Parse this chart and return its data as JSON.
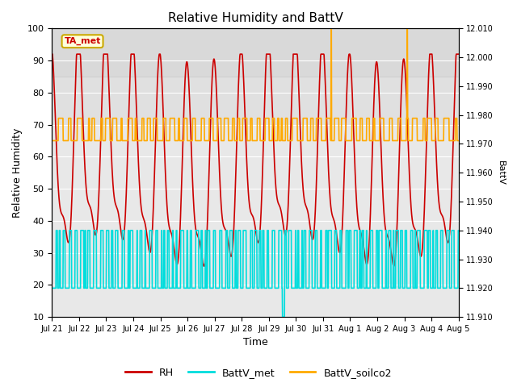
{
  "title": "Relative Humidity and BattV",
  "xlabel": "Time",
  "ylabel_left": "Relative Humidity",
  "ylabel_right": "BattV",
  "annotation_text": "TA_met",
  "annotation_color": "#cc0000",
  "annotation_bg": "#ffffdd",
  "annotation_border": "#ccaa00",
  "plot_bg_color": "#e8e8e8",
  "fig_bg_color": "#ffffff",
  "shade_color": "#d0d0d0",
  "xlim_start": 0,
  "xlim_end": 15,
  "ylim_left": [
    10,
    100
  ],
  "ylim_right": [
    11.91,
    12.01
  ],
  "xtick_labels": [
    "Jul 21",
    "Jul 22",
    "Jul 23",
    "Jul 24",
    "Jul 25",
    "Jul 26",
    "Jul 27",
    "Jul 28",
    "Jul 29",
    "Jul 30",
    "Jul 31",
    "Aug 1",
    "Aug 2",
    "Aug 3",
    "Aug 4",
    "Aug 5"
  ],
  "ytick_left": [
    10,
    20,
    30,
    40,
    50,
    60,
    70,
    80,
    90,
    100
  ],
  "ytick_right": [
    11.91,
    11.92,
    11.93,
    11.94,
    11.95,
    11.96,
    11.97,
    11.98,
    11.99,
    12.0,
    12.01
  ],
  "rh_color": "#cc0000",
  "battv_met_color": "#00dddd",
  "battv_soilco2_color": "#ffaa00",
  "rh_linewidth": 1.2,
  "battv_linewidth": 1.2,
  "legend_labels": [
    "RH",
    "BattV_met",
    "BattV_soilco2"
  ],
  "legend_colors": [
    "#cc0000",
    "#00dddd",
    "#ffaa00"
  ],
  "grid_color": "#ffffff",
  "rh_high": 85,
  "rh_low": 27,
  "battv_met_high": 37,
  "battv_met_low": 19,
  "battv_soilco2_high": 72,
  "battv_soilco2_low": 65,
  "battv_soilco2_spike": 100
}
